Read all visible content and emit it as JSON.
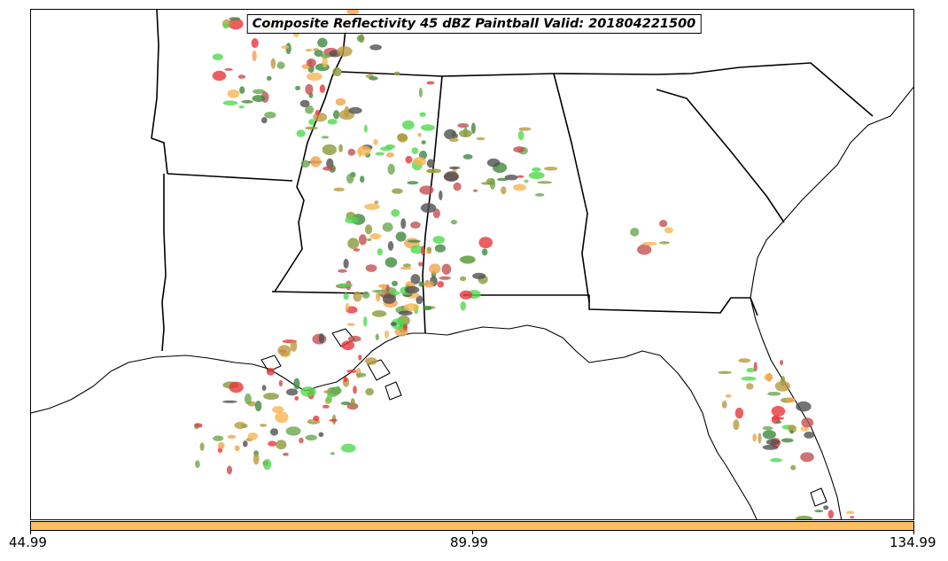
{
  "title": "Composite Reflectivity 45 dBZ Paintball Valid: 201804221500",
  "colorbar": {
    "color": "#fcc061",
    "ticks": [
      "44.99",
      "89.99",
      "134.99"
    ]
  },
  "member_colors": [
    "#4fd94f",
    "#e8363a",
    "#f0a24e",
    "#8a9a3a",
    "#3e8a3e",
    "#505050",
    "#b89a40",
    "#c45050",
    "#f7b552",
    "#6aa84f"
  ]
}
